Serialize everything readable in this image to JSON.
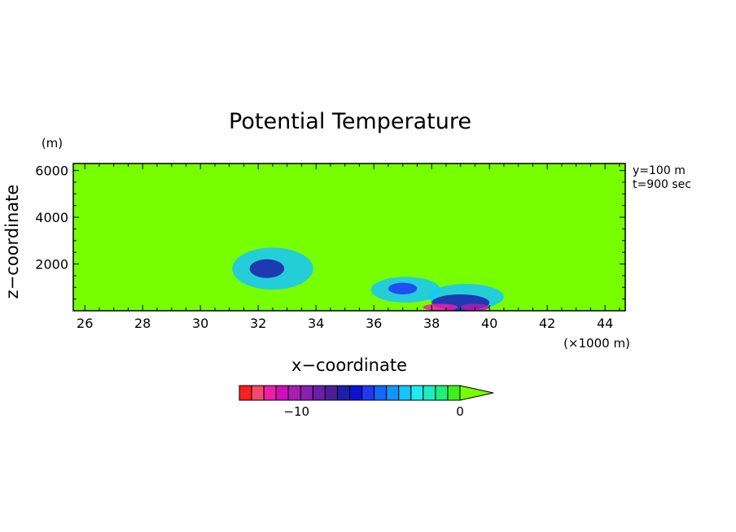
{
  "chart_data": {
    "type": "heatmap",
    "title": "Potential Temperature",
    "xlabel": "x−coordinate",
    "ylabel": "z−coordinate",
    "x_unit": "(×1000 m)",
    "y_unit": "(m)",
    "annotations": [
      "y=100 m",
      "t=900 sec"
    ],
    "xlim": [
      25.6,
      44.7
    ],
    "ylim": [
      0,
      6300
    ],
    "x_ticks": [
      26,
      28,
      30,
      32,
      34,
      36,
      38,
      40,
      42,
      44
    ],
    "x_tick_labels": [
      "26",
      "28",
      "30",
      "32",
      "34",
      "36",
      "38",
      "40",
      "42",
      "44"
    ],
    "y_ticks": [
      2000,
      4000,
      6000
    ],
    "y_tick_labels": [
      "2000",
      "4000",
      "6000"
    ],
    "background_color": "#77ff00",
    "colorbar": {
      "colors": [
        "#ff1e1e",
        "#f34a6b",
        "#ec1ea9",
        "#cf0fb8",
        "#ab1cb5",
        "#8a1fb0",
        "#6a1ea6",
        "#4b1f9a",
        "#1e1ea8",
        "#0e12d0",
        "#1f39f4",
        "#1268ff",
        "#0f96ff",
        "#14c5ff",
        "#22ebf0",
        "#1eecc0",
        "#1ef078",
        "#3cf01e"
      ],
      "extend_color": "#77ff00",
      "range": [
        -13.5,
        0
      ],
      "tick_values": [
        -10,
        0
      ],
      "tick_labels": [
        "−10",
        "0"
      ]
    },
    "features": [
      {
        "x": 32.5,
        "z": 1800,
        "rx": 1.4,
        "rz": 900,
        "color": "#14c5ff"
      },
      {
        "x": 32.3,
        "z": 1800,
        "rx": 0.6,
        "rz": 400,
        "color": "#1e1ea8"
      },
      {
        "x": 37.1,
        "z": 900,
        "rx": 1.2,
        "rz": 550,
        "color": "#14c5ff"
      },
      {
        "x": 37.0,
        "z": 950,
        "rx": 0.5,
        "rz": 250,
        "color": "#1f39f4"
      },
      {
        "x": 39.2,
        "z": 600,
        "rx": 1.3,
        "rz": 550,
        "color": "#14c5ff"
      },
      {
        "x": 39.0,
        "z": 350,
        "rx": 1.0,
        "rz": 350,
        "color": "#1e1ea8"
      },
      {
        "x": 38.3,
        "z": 150,
        "rx": 0.6,
        "rz": 150,
        "color": "#ec1ea9"
      },
      {
        "x": 39.5,
        "z": 150,
        "rx": 0.5,
        "rz": 150,
        "color": "#ab1cb5"
      }
    ]
  }
}
